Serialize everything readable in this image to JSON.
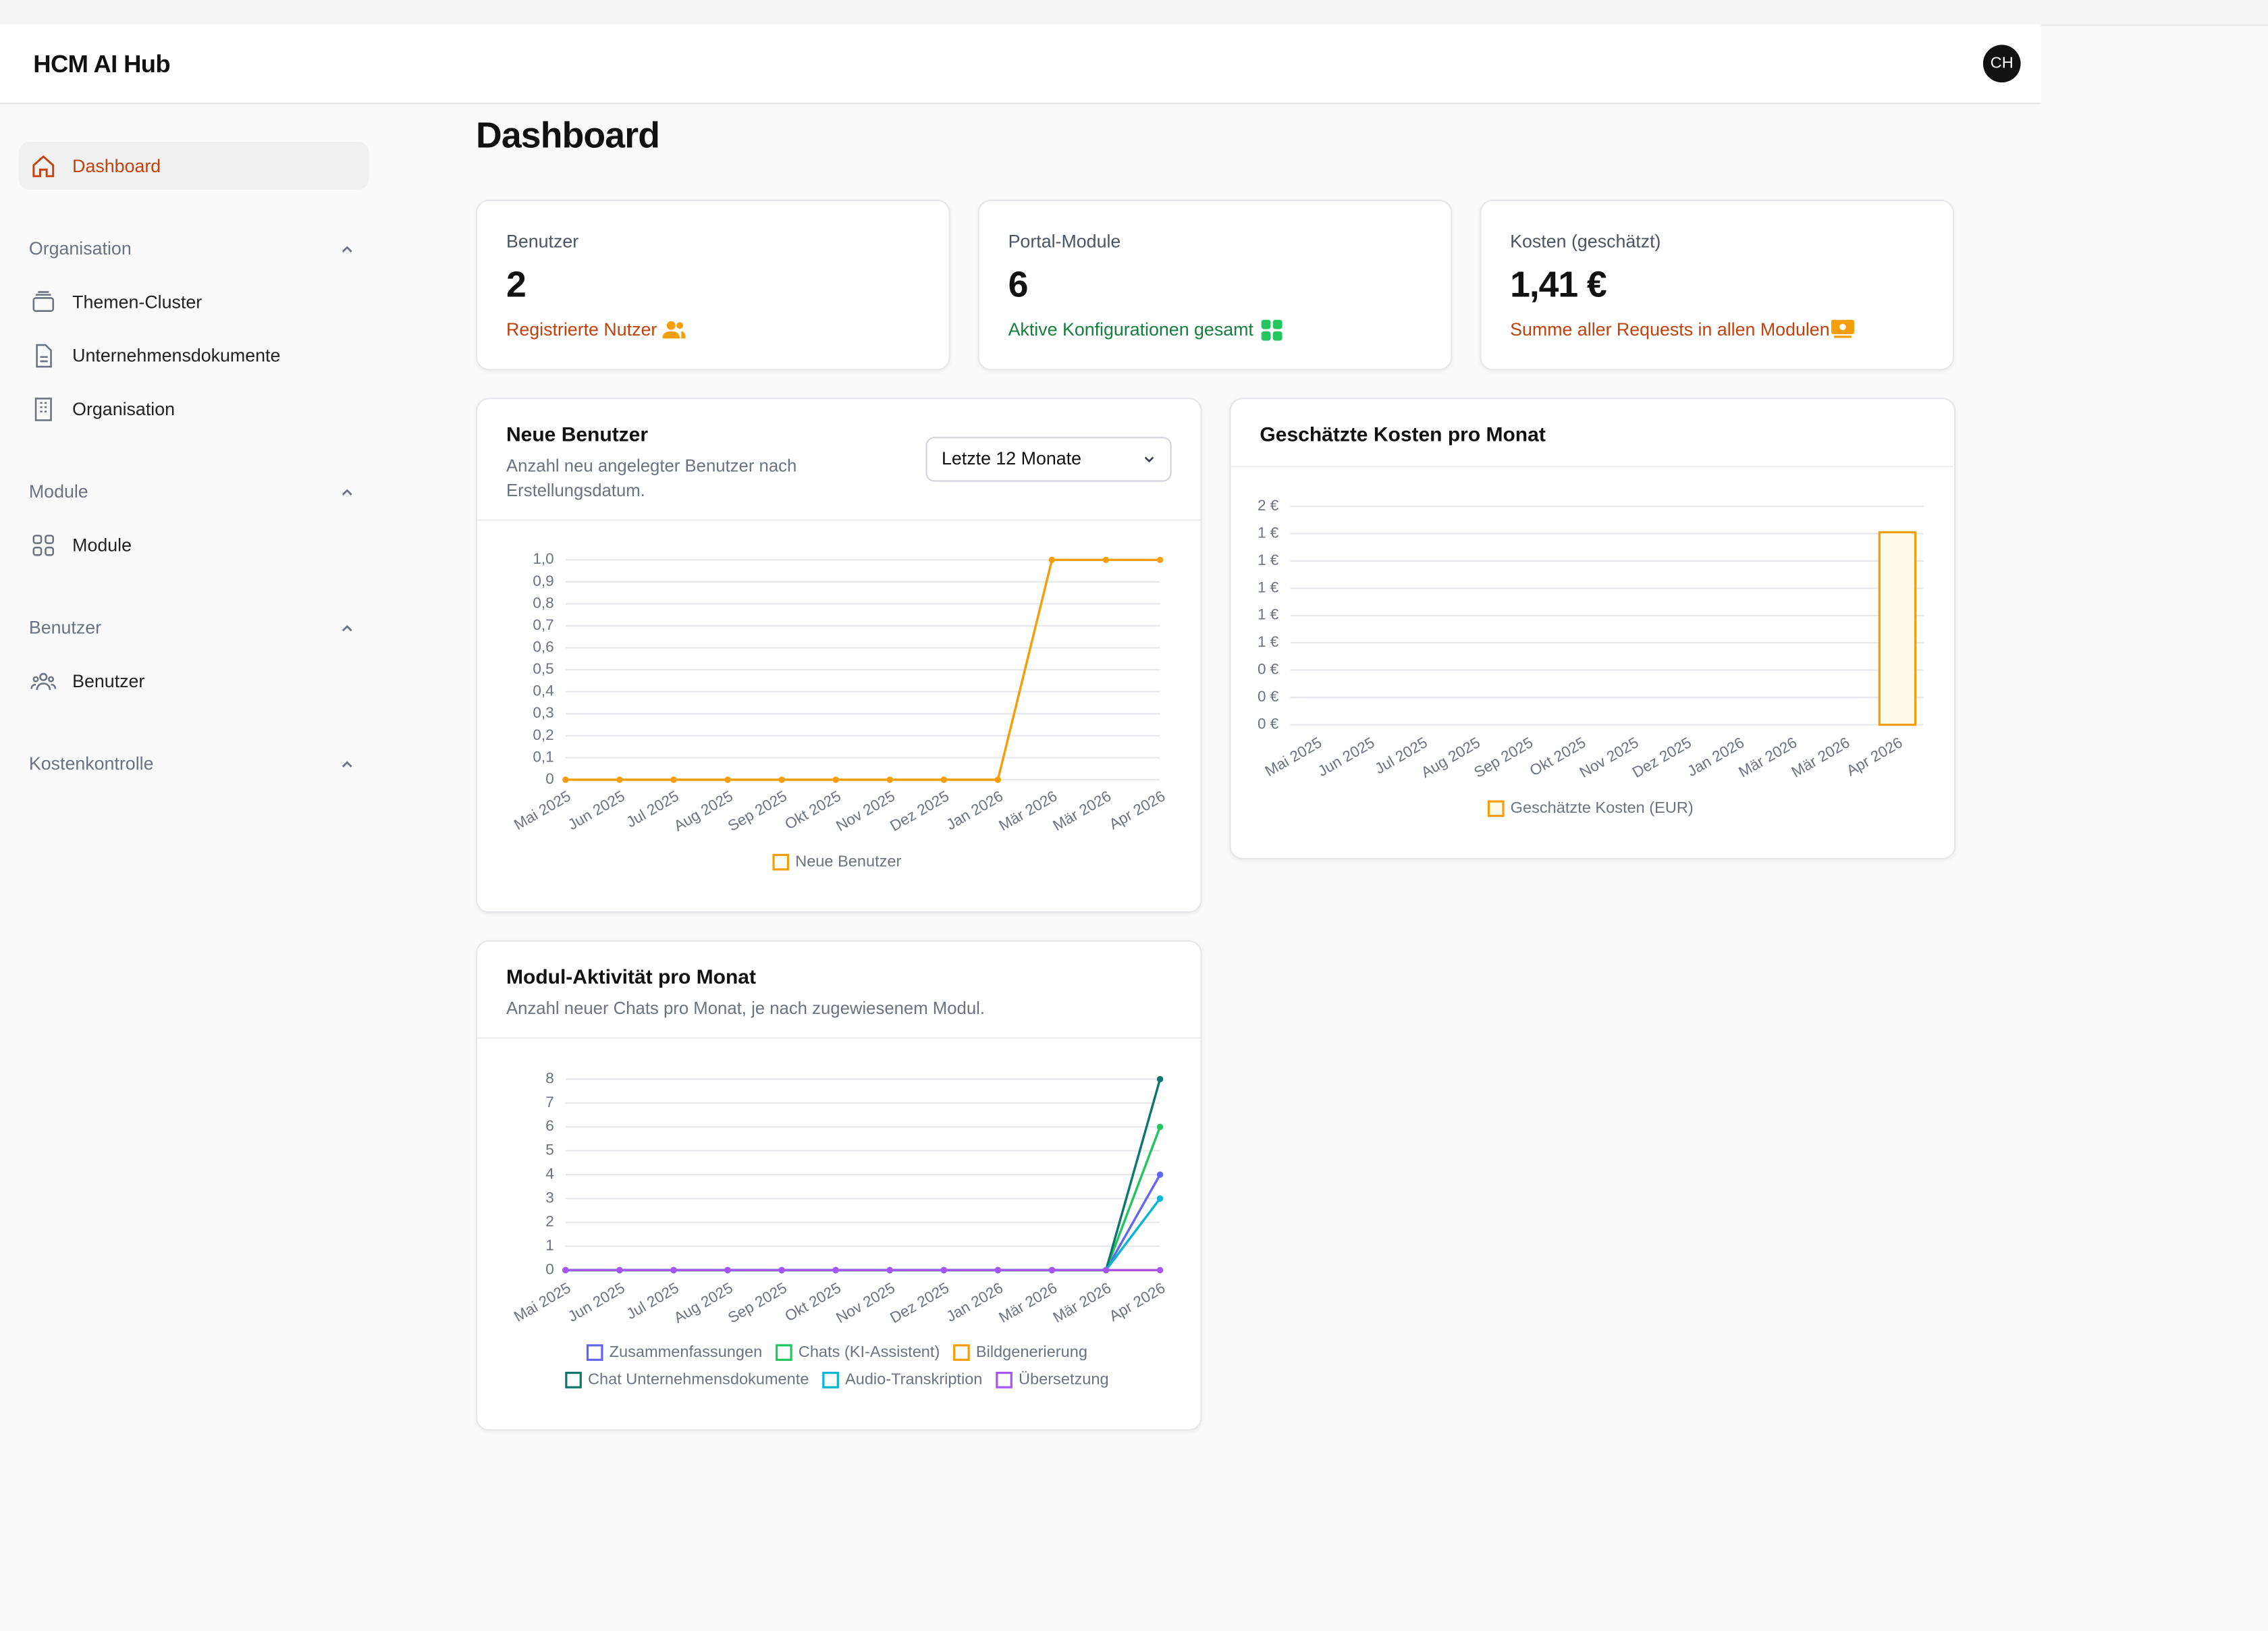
{
  "header": {
    "brand": "HCM AI Hub",
    "avatar": "CH"
  },
  "sidebar": {
    "active": "Dashboard",
    "groups": [
      {
        "title": "Organisation",
        "items": [
          "Themen-Cluster",
          "Unternehmensdokumente",
          "Organisation"
        ]
      },
      {
        "title": "Module",
        "items": [
          "Module"
        ]
      },
      {
        "title": "Benutzer",
        "items": [
          "Benutzer"
        ]
      },
      {
        "title": "Kostenkontrolle",
        "items": []
      }
    ]
  },
  "page_title": "Dashboard",
  "stats": [
    {
      "label": "Benutzer",
      "value": 2,
      "note": "Registrierte Nutzer"
    },
    {
      "label": "Portal-Module",
      "value": 6,
      "note": "Aktive Konfigurationen gesamt"
    },
    {
      "label": "Kosten (geschätzt)",
      "value": "1,41 €",
      "note": "Summe aller Requests in allen Modulen"
    }
  ],
  "chart_data": [
    {
      "type": "line",
      "title": "Neue Benutzer",
      "subtitle": "Anzahl neu angelegter Benutzer nach Erstellungsdatum.",
      "filter": "Letzte 12 Monate",
      "categories": [
        "Mai 2025",
        "Jun 2025",
        "Jul 2025",
        "Aug 2025",
        "Sep 2025",
        "Okt 2025",
        "Nov 2025",
        "Dez 2025",
        "Jan 2026",
        "Mär 2026",
        "Mär 2026",
        "Apr 2026"
      ],
      "series": [
        {
          "name": "Neue Benutzer",
          "color": "#f59e0b",
          "values": [
            0,
            0,
            0,
            0,
            0,
            0,
            0,
            0,
            0,
            1,
            1,
            1
          ]
        }
      ],
      "ylim": [
        0,
        1
      ],
      "yticks": [
        0,
        {
          "value": 0.1,
          "label": "0,1"
        },
        {
          "value": 0.2,
          "label": "0,2"
        },
        {
          "value": 0.3,
          "label": "0,3"
        },
        {
          "value": 0.4,
          "label": "0,4"
        },
        {
          "value": 0.5,
          "label": "0,5"
        },
        {
          "value": 0.6,
          "label": "0,6"
        },
        {
          "value": 0.7,
          "label": "0,7"
        },
        {
          "value": 0.8,
          "label": "0,8"
        },
        {
          "value": 0.9,
          "label": "0,9"
        },
        {
          "value": 1,
          "label": "1,0"
        }
      ],
      "grid": true
    },
    {
      "type": "bar",
      "title": "Geschätzte Kosten pro Monat",
      "categories": [
        "Mai 2025",
        "Jun 2025",
        "Jul 2025",
        "Aug 2025",
        "Sep 2025",
        "Okt 2025",
        "Nov 2025",
        "Dez 2025",
        "Jan 2026",
        "Mär 2026",
        "Mär 2026",
        "Apr 2026"
      ],
      "series": [
        {
          "name": "Geschätzte Kosten (EUR)",
          "color": "#f59e0b",
          "fill": "#fffbeb",
          "values": [
            0,
            0,
            0,
            0,
            0,
            0,
            0,
            0,
            0,
            0,
            0,
            1.41
          ]
        }
      ],
      "ylim": [
        0,
        1.6
      ],
      "yticks": [
        {
          "value": 0,
          "label": "0 €"
        },
        {
          "value": 0.2,
          "label": "0 €"
        },
        {
          "value": 0.4,
          "label": "0 €"
        },
        {
          "value": 0.6,
          "label": "1 €"
        },
        {
          "value": 0.8,
          "label": "1 €"
        },
        {
          "value": 1,
          "label": "1 €"
        },
        {
          "value": 1.2,
          "label": "1 €"
        },
        {
          "value": 1.4,
          "label": "1 €"
        },
        {
          "value": 1.6,
          "label": "2 €"
        }
      ],
      "grid": true
    },
    {
      "type": "line",
      "title": "Modul-Aktivität pro Monat",
      "subtitle": "Anzahl neuer Chats pro Monat, je nach zugewiesenem Modul.",
      "categories": [
        "Mai 2025",
        "Jun 2025",
        "Jul 2025",
        "Aug 2025",
        "Sep 2025",
        "Okt 2025",
        "Nov 2025",
        "Dez 2025",
        "Jan 2026",
        "Mär 2026",
        "Mär 2026",
        "Apr 2026"
      ],
      "series": [
        {
          "name": "Zusammenfassungen",
          "color": "#6366f1",
          "values": [
            0,
            0,
            0,
            0,
            0,
            0,
            0,
            0,
            0,
            0,
            0,
            4
          ]
        },
        {
          "name": "Chats (KI-Assistent)",
          "color": "#22c55e",
          "values": [
            0,
            0,
            0,
            0,
            0,
            0,
            0,
            0,
            0,
            0,
            0,
            6
          ]
        },
        {
          "name": "Bildgenerierung",
          "color": "#f59e0b",
          "values": [
            0,
            0,
            0,
            0,
            0,
            0,
            0,
            0,
            0,
            0,
            0,
            0
          ]
        },
        {
          "name": "Chat Unternehmensdokumente",
          "color": "#0f766e",
          "values": [
            0,
            0,
            0,
            0,
            0,
            0,
            0,
            0,
            0,
            0,
            0,
            8
          ]
        },
        {
          "name": "Audio-Transkription",
          "color": "#06b6d4",
          "values": [
            0,
            0,
            0,
            0,
            0,
            0,
            0,
            0,
            0,
            0,
            0,
            3
          ]
        },
        {
          "name": "Übersetzung",
          "color": "#a855f7",
          "values": [
            0,
            0,
            0,
            0,
            0,
            0,
            0,
            0,
            0,
            0,
            0,
            0
          ]
        }
      ],
      "ylim": [
        0,
        8
      ],
      "yticks": [
        0,
        1,
        2,
        3,
        4,
        5,
        6,
        7,
        8
      ],
      "grid": true
    }
  ]
}
